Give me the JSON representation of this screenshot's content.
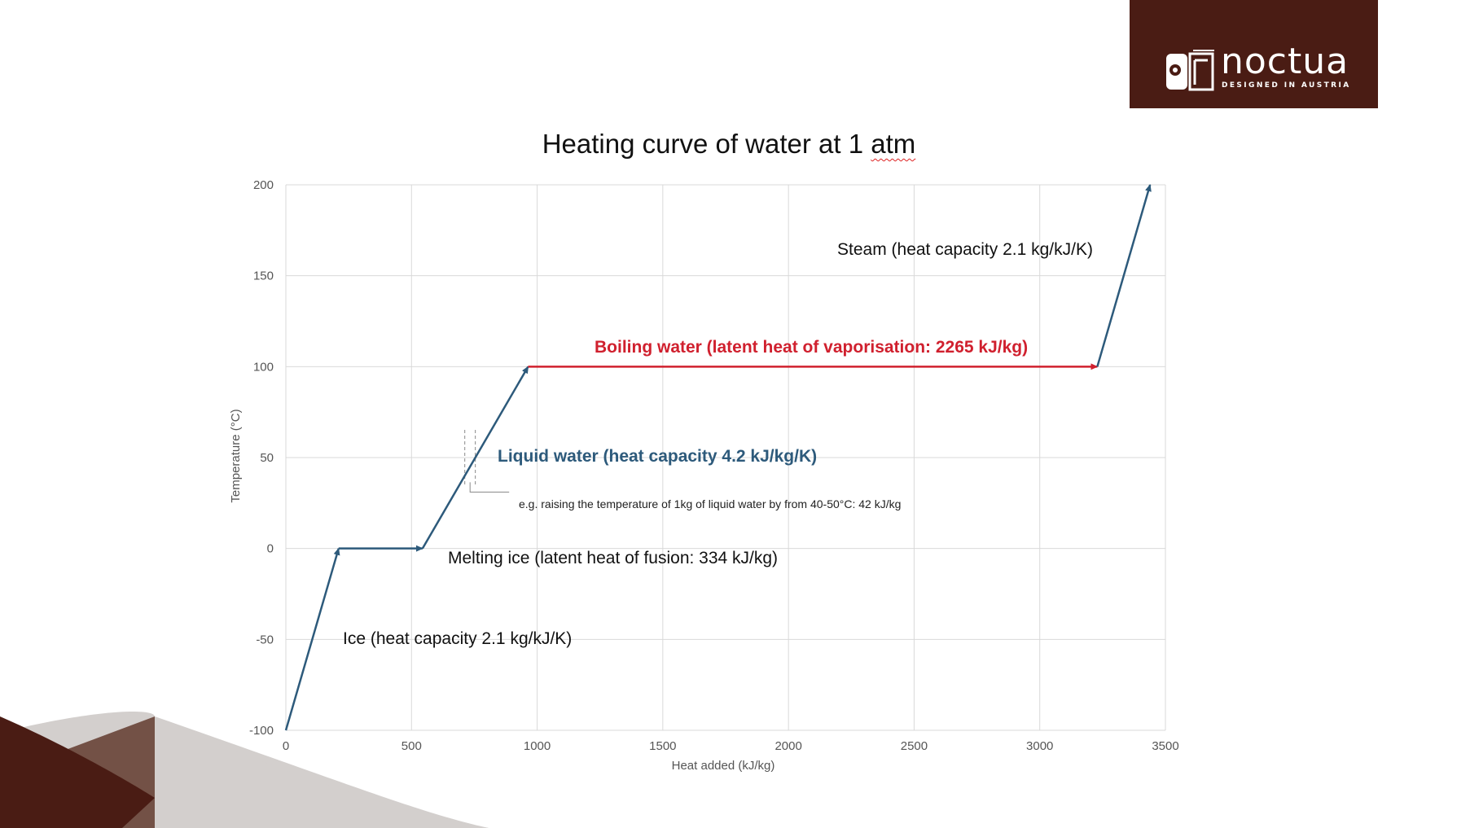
{
  "branding": {
    "logo_word": "noctua",
    "logo_tagline": "DESIGNED IN AUSTRIA",
    "logo_bg_color": "#4a1c14",
    "logo_icon": "owl-logo-icon"
  },
  "colors": {
    "blue_series": "#2d5a7b",
    "red_series": "#d0202e",
    "gridline": "#d9d9d9",
    "axis_text": "#555555",
    "decor_dark": "#4a1c14",
    "decor_mid": "#735146",
    "decor_light": "#d3cfcd"
  },
  "chart_data": {
    "type": "line",
    "title_main": "Heating curve of water at 1",
    "title_underlined": "atm",
    "xlabel": "Heat added (kJ/kg)",
    "ylabel": "Temperature (°C)",
    "xlim": [
      0,
      3500
    ],
    "ylim": [
      -100,
      200
    ],
    "x_ticks": [
      "0",
      "500",
      "1000",
      "1500",
      "2000",
      "2500",
      "3000",
      "3500"
    ],
    "y_ticks": [
      "200",
      "150",
      "100",
      "50",
      "0",
      "-50",
      "-100"
    ],
    "grid": true,
    "series": [
      {
        "segment": "ice",
        "color": "blue",
        "points": [
          [
            0,
            -100
          ],
          [
            210,
            0
          ]
        ]
      },
      {
        "segment": "melting",
        "color": "blue",
        "points": [
          [
            210,
            0
          ],
          [
            544,
            0
          ]
        ]
      },
      {
        "segment": "liquid",
        "color": "blue",
        "points": [
          [
            544,
            0
          ],
          [
            964,
            100
          ]
        ]
      },
      {
        "segment": "boiling",
        "color": "red",
        "points": [
          [
            964,
            100
          ],
          [
            3229,
            100
          ]
        ]
      },
      {
        "segment": "steam",
        "color": "blue",
        "points": [
          [
            3229,
            100
          ],
          [
            3439,
            200
          ]
        ]
      }
    ],
    "annotations": {
      "ice": "Ice (heat capacity 2.1 kg/kJ/K)",
      "melting": "Melting ice (latent heat of fusion: 334 kJ/kg)",
      "liquid": "Liquid water (heat capacity 4.2 kJ/kg/K)",
      "liquid_example": "e.g. raising the temperature of 1kg of liquid water by from 40-50°C: 42 kJ/kg",
      "boiling": "Boiling water (latent heat of vaporisation: 2265 kJ/kg)",
      "steam": "Steam (heat capacity 2.1 kg/kJ/K)"
    },
    "example_range": {
      "x": [
        712,
        754
      ],
      "y": [
        40,
        50
      ]
    }
  }
}
